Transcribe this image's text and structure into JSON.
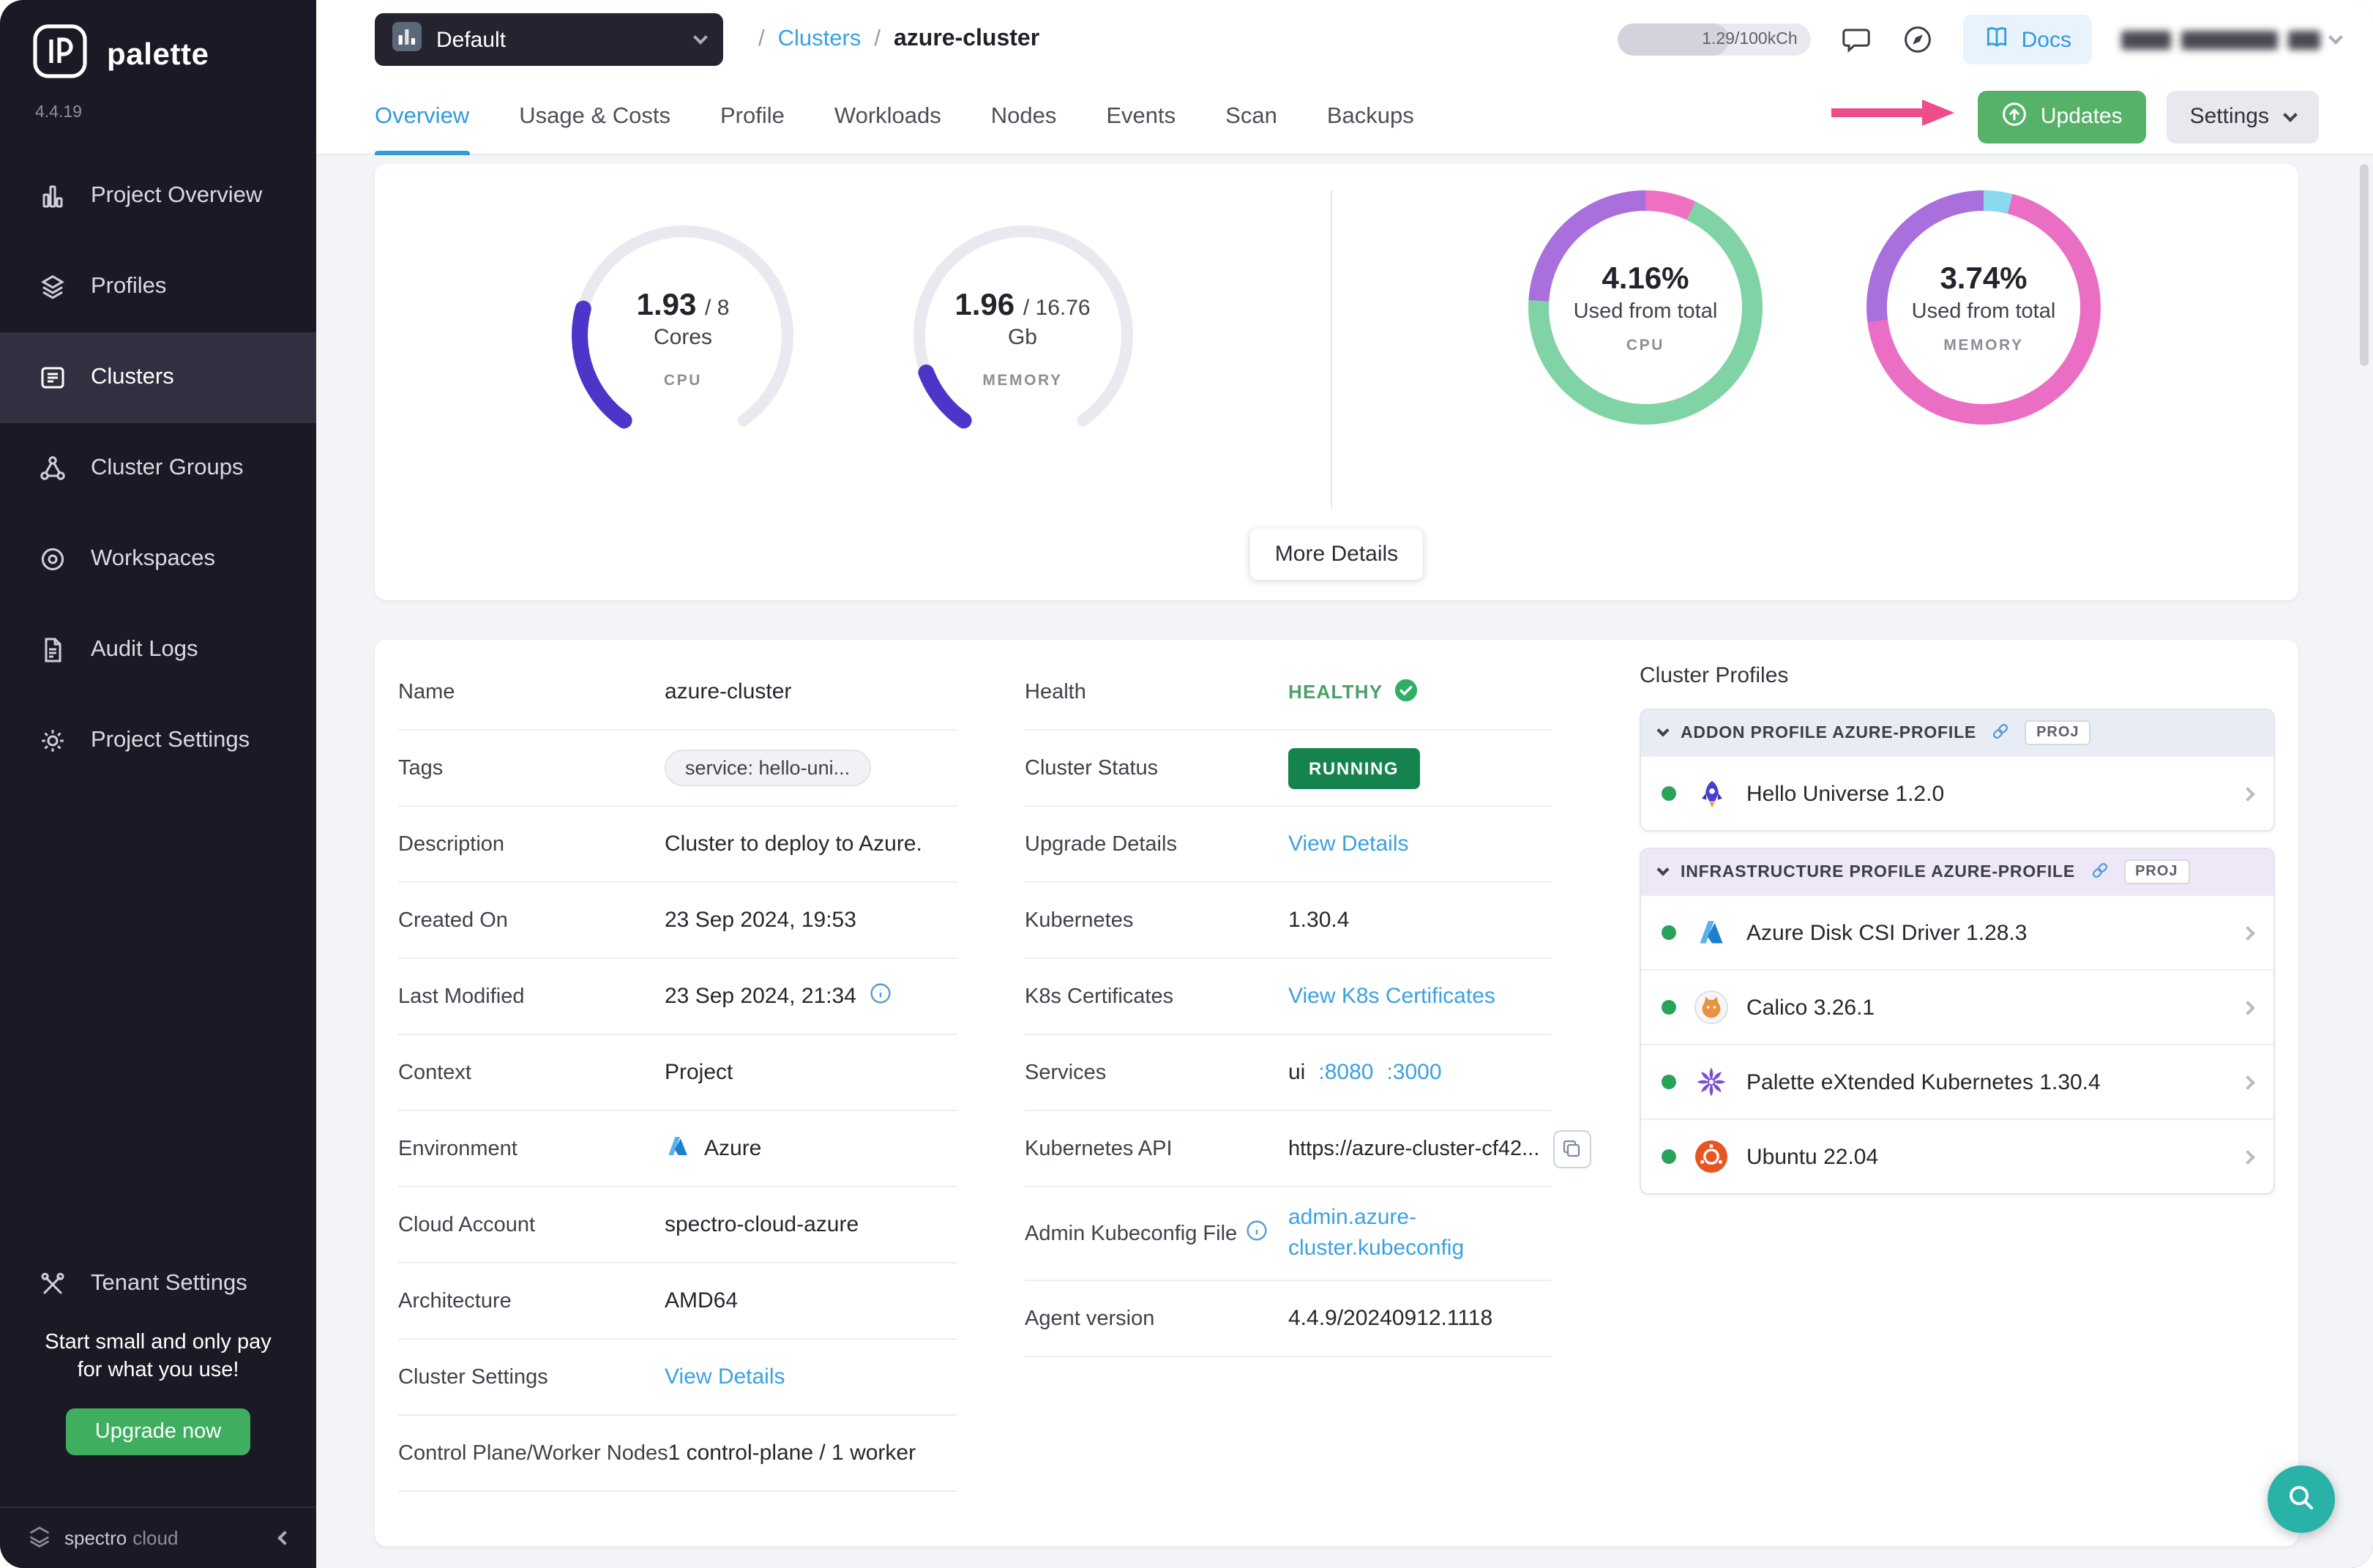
{
  "app": {
    "brand": "palette",
    "version": "4.4.19"
  },
  "sidebar": {
    "items": [
      {
        "label": "Project Overview",
        "icon": "bar-chart-icon",
        "active": false
      },
      {
        "label": "Profiles",
        "icon": "layers-icon",
        "active": false
      },
      {
        "label": "Clusters",
        "icon": "clusters-icon",
        "active": true
      },
      {
        "label": "Cluster Groups",
        "icon": "cluster-groups-icon",
        "active": false
      },
      {
        "label": "Workspaces",
        "icon": "workspaces-icon",
        "active": false
      },
      {
        "label": "Audit Logs",
        "icon": "audit-logs-icon",
        "active": false
      },
      {
        "label": "Project Settings",
        "icon": "gear-icon",
        "active": false
      }
    ],
    "tenant_settings_label": "Tenant Settings",
    "promo": {
      "text": "Start small and only pay for what you use!",
      "cta": "Upgrade now"
    },
    "footer_brand_1": "spectro",
    "footer_brand_2": "cloud"
  },
  "topbar": {
    "project_selector": "Default",
    "breadcrumb": {
      "root": "/",
      "section": "Clusters",
      "divider": "/",
      "current": "azure-cluster"
    },
    "usage": "1.29/100kCh",
    "docs": "Docs"
  },
  "tabs": {
    "items": [
      "Overview",
      "Usage & Costs",
      "Profile",
      "Workloads",
      "Nodes",
      "Events",
      "Scan",
      "Backups"
    ],
    "active": "Overview",
    "updates": "Updates",
    "settings": "Settings"
  },
  "overview": {
    "gauges": [
      {
        "value": "1.93",
        "total": "/ 8",
        "unit": "Cores",
        "label": "CPU",
        "fraction": 0.241,
        "color": "#4c35c8"
      },
      {
        "value": "1.96",
        "total": "/ 16.76",
        "unit": "Gb",
        "label": "MEMORY",
        "fraction": 0.117,
        "color": "#4c35c8"
      }
    ],
    "donuts": [
      {
        "percent": "4.16%",
        "caption": "Used from total",
        "label": "CPU",
        "segments": [
          {
            "color": "#ef6fc3",
            "to": 7
          },
          {
            "color": "#7fd3a5",
            "to": 76
          },
          {
            "color": "#a96fdd",
            "to": 100
          }
        ]
      },
      {
        "percent": "3.74%",
        "caption": "Used from total",
        "label": "MEMORY",
        "segments": [
          {
            "color": "#8ad9ef",
            "to": 4
          },
          {
            "color": "#ea6fc4",
            "to": 73
          },
          {
            "color": "#a96fdd",
            "to": 100
          }
        ]
      }
    ],
    "more_details": "More Details"
  },
  "details": {
    "left": [
      {
        "label": "Name",
        "value": "azure-cluster"
      },
      {
        "label": "Tags",
        "value": "service: hello-uni..."
      },
      {
        "label": "Description",
        "value": "Cluster to deploy to Azure."
      },
      {
        "label": "Created On",
        "value": "23 Sep 2024, 19:53"
      },
      {
        "label": "Last Modified",
        "value": "23 Sep 2024, 21:34"
      },
      {
        "label": "Context",
        "value": "Project"
      },
      {
        "label": "Environment",
        "value": "Azure"
      },
      {
        "label": "Cloud Account",
        "value": "spectro-cloud-azure"
      },
      {
        "label": "Architecture",
        "value": "AMD64"
      },
      {
        "label": "Cluster Settings",
        "value": "View Details"
      },
      {
        "label": "Control Plane/Worker Nodes",
        "value": "1 control-plane / 1 worker"
      }
    ],
    "middle": [
      {
        "label": "Health",
        "value": "HEALTHY"
      },
      {
        "label": "Cluster Status",
        "value": "RUNNING"
      },
      {
        "label": "Upgrade Details",
        "value": "View Details"
      },
      {
        "label": "Kubernetes",
        "value": "1.30.4"
      },
      {
        "label": "K8s Certificates",
        "value": "View K8s Certificates"
      },
      {
        "label": "Services",
        "value": "ui",
        "link1": ":8080",
        "link2": ":3000"
      },
      {
        "label": "Kubernetes API",
        "value": "https://azure-cluster-cf42..."
      },
      {
        "label": "Admin Kubeconfig File",
        "value": "admin.azure-cluster.kubeconfig"
      },
      {
        "label": "Agent version",
        "value": "4.4.9/20240912.1118"
      }
    ]
  },
  "profiles": {
    "title": "Cluster Profiles",
    "sections": [
      {
        "header": "ADDON PROFILE AZURE-PROFILE",
        "badge": "PROJ",
        "items": [
          {
            "name": "Hello Universe 1.2.0",
            "icon": "hello-universe-icon"
          }
        ]
      },
      {
        "header": "INFRASTRUCTURE PROFILE AZURE-PROFILE",
        "badge": "PROJ",
        "items": [
          {
            "name": "Azure Disk CSI Driver 1.28.3",
            "icon": "azure-icon"
          },
          {
            "name": "Calico 3.26.1",
            "icon": "calico-icon"
          },
          {
            "name": "Palette eXtended Kubernetes 1.30.4",
            "icon": "pxk-icon"
          },
          {
            "name": "Ubuntu 22.04",
            "icon": "ubuntu-icon"
          }
        ]
      }
    ]
  }
}
